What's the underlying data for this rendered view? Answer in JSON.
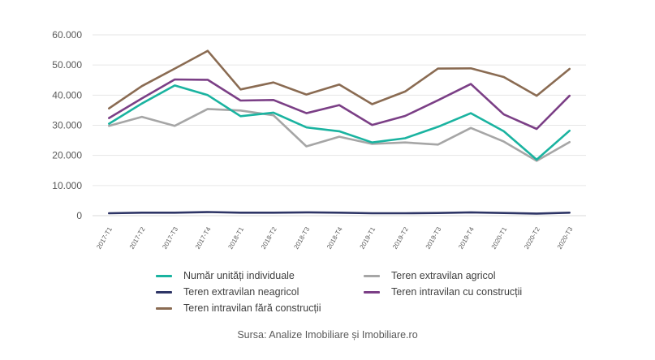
{
  "chart_data": {
    "type": "line",
    "categories": [
      "2017-T1",
      "2017-T2",
      "2017-T3",
      "2017-T4",
      "2018-T1",
      "2018-T2",
      "2018-T3",
      "2018-T4",
      "2019-T1",
      "2019-T2",
      "2019-T3",
      "2019-T4",
      "2020-T1",
      "2020-T2",
      "2020-T3"
    ],
    "yticks": [
      "0",
      "10.000",
      "20.000",
      "30.000",
      "40.000",
      "50.000",
      "60.000"
    ],
    "ylim": [
      0,
      60000
    ],
    "grid": true,
    "legend_position": "bottom",
    "series": [
      {
        "name": "Număr unități individuale",
        "color": "#1ab3a0",
        "values": [
          30500,
          37200,
          43200,
          40000,
          33000,
          34200,
          29300,
          28000,
          24300,
          25700,
          29500,
          34000,
          28000,
          18600,
          28200
        ]
      },
      {
        "name": "Teren extravilan agricol",
        "color": "#a6a6a6",
        "values": [
          29800,
          32800,
          29800,
          35400,
          34900,
          33300,
          23000,
          26200,
          23800,
          24300,
          23600,
          29100,
          24600,
          18200,
          24400
        ]
      },
      {
        "name": "Teren extravilan neagricol",
        "color": "#2e3566",
        "values": [
          800,
          1000,
          1000,
          1200,
          1000,
          1000,
          1100,
          1000,
          800,
          800,
          900,
          1100,
          900,
          700,
          1000
        ]
      },
      {
        "name": "Teren intravilan cu construcții",
        "color": "#7b3f86",
        "values": [
          32400,
          38900,
          45200,
          45100,
          38200,
          38400,
          34000,
          36700,
          30100,
          33100,
          38300,
          43700,
          33600,
          28800,
          39800
        ]
      },
      {
        "name": "Teren intravilan fără construcții",
        "color": "#8a6b52",
        "values": [
          35600,
          43000,
          48800,
          54700,
          41900,
          44200,
          40200,
          43500,
          37000,
          41200,
          48800,
          48900,
          46000,
          39800,
          48700
        ]
      }
    ]
  },
  "source": "Sursa: Analize Imobiliare și Imobiliare.ro"
}
